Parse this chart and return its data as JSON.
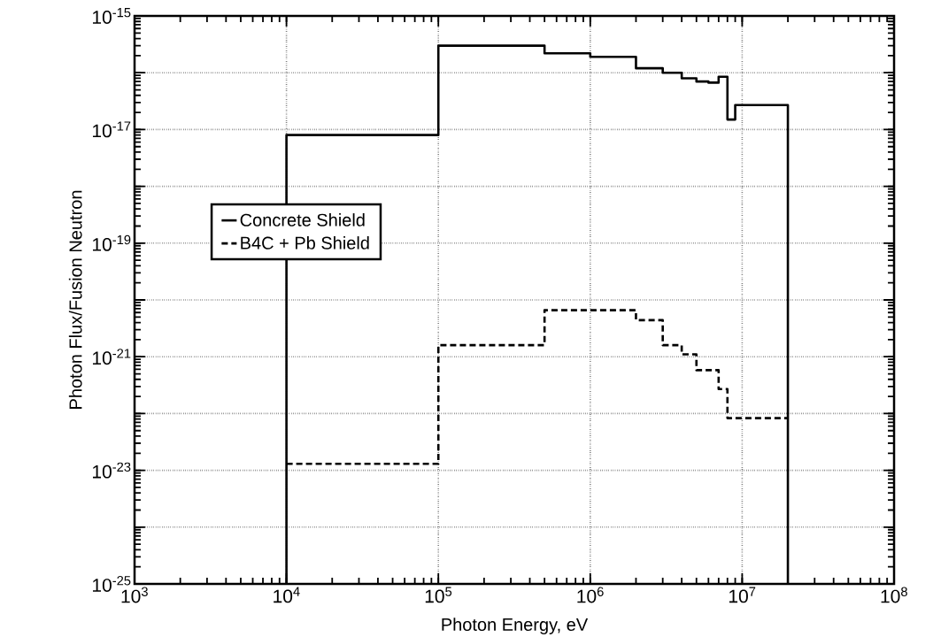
{
  "chart_data": {
    "type": "step",
    "xlabel": "Photon Energy, eV",
    "ylabel": "Photon Flux/Fusion Neutron",
    "log": "xy",
    "xlim": [
      1000,
      100000000
    ],
    "ylim": [
      1e-25,
      1e-15
    ],
    "xticks": [
      {
        "value": 1000,
        "label": "10$^{3}$"
      },
      {
        "value": 10000,
        "label": "10$^{4}$"
      },
      {
        "value": 100000,
        "label": "10$^{5}$"
      },
      {
        "value": 1000000,
        "label": "10$^{6}$"
      },
      {
        "value": 10000000,
        "label": "10$^{7}$"
      },
      {
        "value": 100000000,
        "label": "10$^{8}$"
      }
    ],
    "yticks": [
      {
        "value": 1e-25,
        "label": "10$^{-25}$"
      },
      {
        "value": 1e-24,
        "label": null
      },
      {
        "value": 1e-23,
        "label": "10$^{-23}$"
      },
      {
        "value": 1e-22,
        "label": null
      },
      {
        "value": 1e-21,
        "label": "10$^{-21}$"
      },
      {
        "value": 1e-20,
        "label": null
      },
      {
        "value": 1e-19,
        "label": "10$^{-19}$"
      },
      {
        "value": 1e-18,
        "label": null
      },
      {
        "value": 1e-17,
        "label": "10$^{-17}$"
      },
      {
        "value": 1e-16,
        "label": null
      },
      {
        "value": 1e-15,
        "label": "10$^{-15}$"
      }
    ],
    "grid": true,
    "legend": "left",
    "marker": "none",
    "series": [
      {
        "name": "Concrete Shield",
        "color": "#000000",
        "line_style": "solid",
        "x": [
          10000,
          10000,
          100000,
          500000,
          1000000,
          2000000,
          3000000,
          4000000,
          5000000,
          6000000,
          7000000,
          8000000,
          9000000,
          20000000,
          20000000
        ],
        "values": [
          1e-25,
          8e-18,
          3e-16,
          2.2e-16,
          1.9e-16,
          1.2e-16,
          1e-16,
          8e-17,
          7e-17,
          6.7e-17,
          8.5e-17,
          1.5e-17,
          2.7e-17,
          2.7e-17,
          1e-25
        ]
      },
      {
        "name": "B4C + Pb Shield",
        "color": "#000000",
        "line_style": "dashed",
        "x": [
          10000,
          100000,
          500000,
          2000000,
          3000000,
          4000000,
          5000000,
          7000000,
          8000000,
          20000000
        ],
        "values": [
          1.3e-23,
          1.6e-21,
          6.6e-21,
          4.4e-21,
          1.6e-21,
          1.1e-21,
          5.8e-22,
          2.7e-22,
          8.3e-23,
          8.3e-23
        ]
      }
    ]
  }
}
